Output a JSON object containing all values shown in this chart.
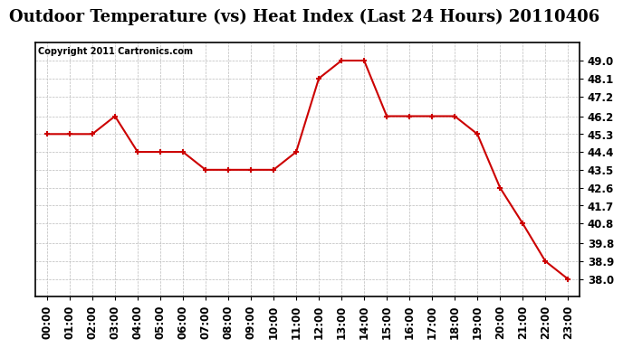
{
  "title": "Outdoor Temperature (vs) Heat Index (Last 24 Hours) 20110406",
  "copyright": "Copyright 2011 Cartronics.com",
  "x_labels": [
    "00:00",
    "01:00",
    "02:00",
    "03:00",
    "04:00",
    "05:00",
    "06:00",
    "07:00",
    "08:00",
    "09:00",
    "10:00",
    "11:00",
    "12:00",
    "13:00",
    "14:00",
    "15:00",
    "16:00",
    "17:00",
    "18:00",
    "19:00",
    "20:00",
    "21:00",
    "22:00",
    "23:00"
  ],
  "y_values": [
    45.3,
    45.3,
    45.3,
    46.2,
    44.4,
    44.4,
    44.4,
    43.5,
    43.5,
    43.5,
    43.5,
    44.4,
    48.1,
    49.0,
    49.0,
    46.2,
    46.2,
    46.2,
    46.2,
    45.3,
    42.6,
    40.8,
    38.9,
    38.0
  ],
  "line_color": "#cc0000",
  "marker": "P",
  "marker_size": 4,
  "marker_linewidth": 1.0,
  "line_width": 1.5,
  "y_min": 37.1,
  "y_max": 49.9,
  "y_ticks": [
    38.0,
    38.9,
    39.8,
    40.8,
    41.7,
    42.6,
    43.5,
    44.4,
    45.3,
    46.2,
    47.2,
    48.1,
    49.0
  ],
  "background_color": "#ffffff",
  "plot_bg_color": "#ffffff",
  "grid_color": "#bbbbbb",
  "title_fontsize": 13,
  "copyright_fontsize": 7,
  "tick_fontsize": 8.5
}
